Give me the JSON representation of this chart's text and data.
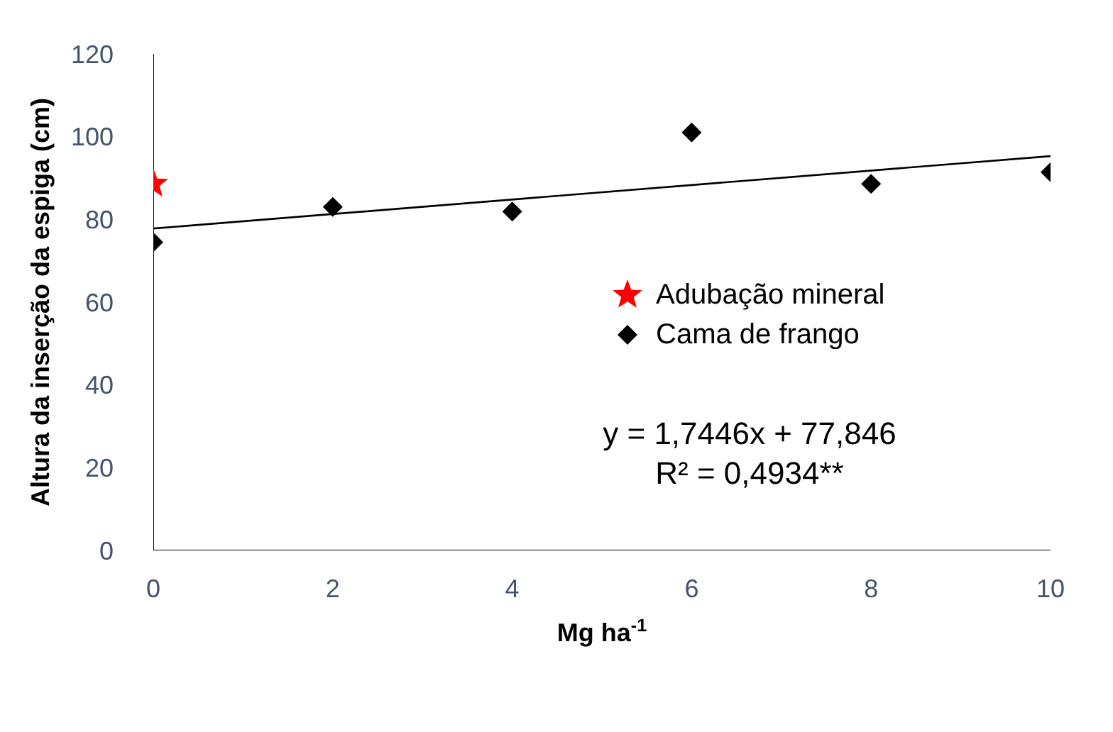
{
  "chart_data": {
    "type": "scatter",
    "xlabel": "Mg ha$^{-1}$",
    "ylabel": "Altura da inserção da espiga (cm)",
    "xlim": [
      0,
      10
    ],
    "xticks": [
      0,
      2,
      4,
      6,
      8,
      10
    ],
    "ylim": [
      0,
      120
    ],
    "yticks": [
      0,
      20,
      40,
      60,
      80,
      100,
      120
    ],
    "grid": false,
    "legend": "right",
    "series": [
      {
        "name": "Adubação mineral",
        "marker": "star",
        "color": "#ff0000",
        "x": [
          0
        ],
        "values": [
          88.6
        ]
      },
      {
        "name": "Cama de frango",
        "marker": "diamond",
        "color": "#000000",
        "x": [
          0,
          2,
          4,
          6,
          8,
          10
        ],
        "values": [
          74.5,
          83.0,
          81.9,
          101,
          88.6,
          91.4
        ]
      },
      {
        "type": "line",
        "marker": "none",
        "color": "#000000",
        "x": [
          0,
          10
        ],
        "values": [
          77.8,
          95.3
        ]
      }
    ],
    "annotations": [
      "y = 1,7446x + 77,846",
      "R² = 0,4934**"
    ]
  }
}
